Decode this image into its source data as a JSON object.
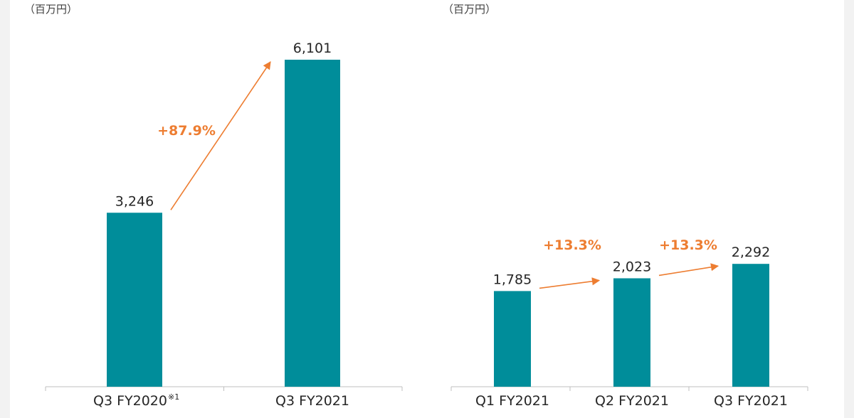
{
  "colors": {
    "bar": "#008d9a",
    "arrow": "#ed7d31",
    "axis": "#bfbfbf",
    "text": "#262626"
  },
  "chart_data": [
    {
      "type": "bar",
      "unit_label": "（百万円）",
      "categories": [
        "Q3 FY2020",
        "Q3 FY2021"
      ],
      "category_notes": [
        "※1",
        ""
      ],
      "values": [
        3246,
        6101
      ],
      "value_labels": [
        "3,246",
        "6,101"
      ],
      "growth": [
        {
          "from": 0,
          "to": 1,
          "label": "+87.9%"
        }
      ]
    },
    {
      "type": "bar",
      "unit_label": "（百万円）",
      "categories": [
        "Q1 FY2021",
        "Q2 FY2021",
        "Q3 FY2021"
      ],
      "category_notes": [
        "",
        "",
        ""
      ],
      "values": [
        1785,
        2023,
        2292
      ],
      "value_labels": [
        "1,785",
        "2,023",
        "2,292"
      ],
      "growth": [
        {
          "from": 0,
          "to": 1,
          "label": "+13.3%"
        },
        {
          "from": 1,
          "to": 2,
          "label": "+13.3%"
        }
      ]
    }
  ]
}
